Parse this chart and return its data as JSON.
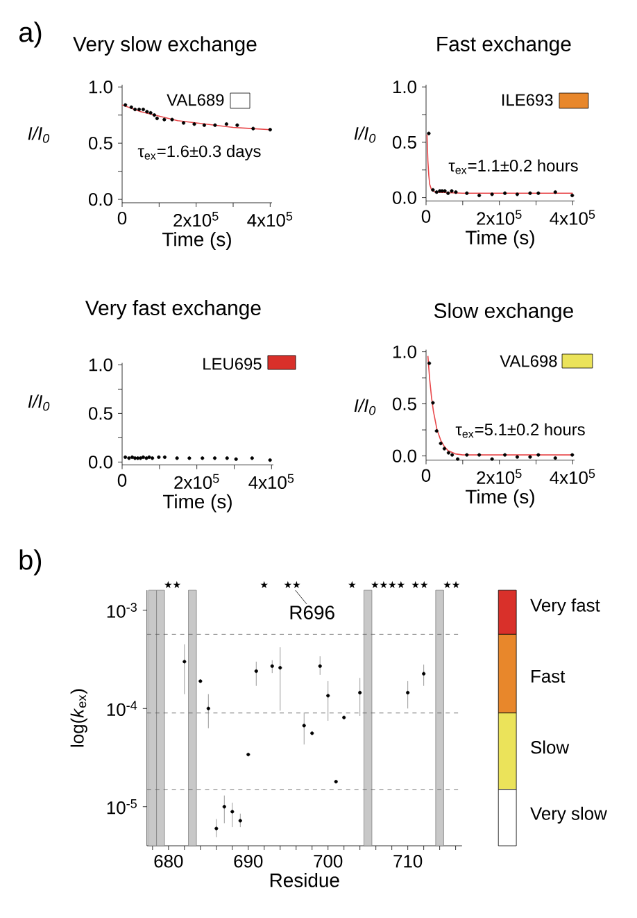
{
  "chart_data": [
    {
      "type": "scatter",
      "title": "Very slow exchange",
      "ylabel": "I/I$_{0}$",
      "xlabel": "Time (s)",
      "annotations": [
        "VAL689",
        "τ$_{ex}$=1.6±0.3 days",
        "a)"
      ],
      "xlim": [
        0,
        405000
      ],
      "xticks": [
        0,
        {
          "value": 100000,
          "label": null
        },
        {
          "value": 200000,
          "label": "2x10$^{5}$"
        },
        {
          "value": 300000,
          "label": null
        },
        {
          "value": 400000,
          "label": "4x10$^{5}$"
        }
      ],
      "ylim": [
        -0.03,
        1.02
      ],
      "yticks": [
        {
          "value": 0,
          "label": "0.0"
        },
        {
          "value": 0.25,
          "label": null
        },
        {
          "value": 0.5,
          "label": "0.5"
        },
        {
          "value": 0.75,
          "label": null
        },
        {
          "value": 1.0,
          "label": "1.0"
        }
      ],
      "series": [
        {
          "type": "scatter",
          "marker": "circle",
          "color": "#000000",
          "x": [
            8700,
            24800,
            34800,
            46000,
            57100,
            67100,
            77000,
            87000,
            94400,
            114000,
            135000,
            166000,
            195000,
            222000,
            251000,
            282000,
            311000,
            354000,
            400000
          ],
          "values": [
            0.84,
            0.82,
            0.8,
            0.8,
            0.8,
            0.78,
            0.77,
            0.75,
            0.72,
            0.71,
            0.71,
            0.68,
            0.67,
            0.66,
            0.66,
            0.67,
            0.66,
            0.63,
            0.62
          ]
        },
        {
          "type": "line",
          "marker": "none",
          "color": "#e8474a",
          "x": [
            0,
            50000,
            100000,
            150000,
            200000,
            250000,
            300000,
            350000,
            400000
          ],
          "values": [
            0.84,
            0.78,
            0.74,
            0.7,
            0.68,
            0.66,
            0.64,
            0.63,
            0.62
          ]
        }
      ]
    },
    {
      "type": "scatter",
      "title": "Fast exchange",
      "ylabel": "I/I$_{0}$",
      "xlabel": "Time (s)",
      "annotations": [
        "ILE693",
        "τ$_{ex}$=1.1±0.2 hours"
      ],
      "xlim": [
        0,
        405000
      ],
      "xticks": [
        0,
        {
          "value": 100000,
          "label": null
        },
        {
          "value": 200000,
          "label": "2x10$^{5}$"
        },
        {
          "value": 300000,
          "label": null
        },
        {
          "value": 400000,
          "label": "4x10$^{5}$"
        }
      ],
      "ylim": [
        -0.03,
        1.02
      ],
      "yticks": [
        {
          "value": 0,
          "label": "0.0"
        },
        {
          "value": 0.25,
          "label": null
        },
        {
          "value": 0.5,
          "label": "0.5"
        },
        {
          "value": 0.75,
          "label": null
        },
        {
          "value": 1.0,
          "label": "1.0"
        }
      ],
      "series": [
        {
          "type": "scatter",
          "marker": "circle",
          "color": "#000000",
          "x": [
            7500,
            18750,
            28750,
            37500,
            43750,
            51250,
            60000,
            70000,
            81250,
            111250,
            145000,
            180000,
            215000,
            248750,
            283750,
            306250,
            352500,
            398750
          ],
          "values": [
            0.58,
            0.07,
            0.05,
            0.06,
            0.06,
            0.06,
            0.04,
            0.06,
            0.05,
            0.04,
            0.02,
            0.03,
            0.04,
            0.03,
            0.04,
            0.04,
            0.05,
            0.02
          ]
        },
        {
          "type": "line",
          "marker": "none",
          "color": "#e8474a",
          "x": [
            2500,
            5000,
            7500,
            10000,
            15000,
            25000,
            100000,
            400000
          ],
          "values": [
            0.57,
            0.33,
            0.2,
            0.12,
            0.07,
            0.05,
            0.04,
            0.04
          ]
        }
      ]
    },
    {
      "type": "scatter",
      "title": "Very fast exchange",
      "ylabel": "I/I$_{0}$",
      "xlabel": "Time (s)",
      "annotations": [
        "LEU695"
      ],
      "xlim": [
        0,
        405000
      ],
      "xticks": [
        0,
        {
          "value": 100000,
          "label": null
        },
        {
          "value": 200000,
          "label": "2x10$^{5}$"
        },
        {
          "value": 300000,
          "label": null
        },
        {
          "value": 400000,
          "label": "4x10$^{5}$"
        }
      ],
      "ylim": [
        -0.03,
        1.02
      ],
      "yticks": [
        {
          "value": 0,
          "label": "0.0"
        },
        {
          "value": 0.25,
          "label": null
        },
        {
          "value": 0.5,
          "label": "0.5"
        },
        {
          "value": 0.75,
          "label": null
        },
        {
          "value": 1.0,
          "label": "1.0"
        }
      ],
      "series": [
        {
          "type": "scatter",
          "marker": "circle",
          "color": "#000000",
          "x": [
            8600,
            18400,
            27000,
            34400,
            41700,
            49100,
            56400,
            65000,
            72400,
            81000,
            98200,
            114000,
            147000,
            180000,
            215000,
            248000,
            281000,
            305000,
            348000,
            396000
          ],
          "values": [
            0.05,
            0.04,
            0.05,
            0.04,
            0.04,
            0.04,
            0.05,
            0.04,
            0.05,
            0.04,
            0.05,
            0.05,
            0.04,
            0.04,
            0.04,
            0.04,
            0.04,
            0.03,
            0.04,
            0.02
          ]
        }
      ]
    },
    {
      "type": "scatter",
      "title": "Slow exchange",
      "ylabel": "I/I$_{0}$",
      "xlabel": "Time (s)",
      "annotations": [
        "VAL698",
        "τ$_{ex}$=5.1±0.2 hours"
      ],
      "xlim": [
        0,
        405000
      ],
      "xticks": [
        0,
        {
          "value": 100000,
          "label": null
        },
        {
          "value": 200000,
          "label": "2x10$^{5}$"
        },
        {
          "value": 300000,
          "label": null
        },
        {
          "value": 400000,
          "label": "4x10$^{5}$"
        }
      ],
      "ylim": [
        -0.04,
        1.02
      ],
      "yticks": [
        {
          "value": 0,
          "label": "0.0"
        },
        {
          "value": 0.25,
          "label": null
        },
        {
          "value": 0.5,
          "label": "0.5"
        },
        {
          "value": 0.75,
          "label": null
        },
        {
          "value": 1.0,
          "label": "1.0"
        }
      ],
      "series": [
        {
          "type": "scatter",
          "marker": "circle",
          "color": "#000000",
          "x": [
            8750,
            18750,
            28750,
            40000,
            50000,
            61250,
            71250,
            86250,
            111250,
            145000,
            180000,
            215000,
            248750,
            283750,
            306250,
            352500,
            398750
          ],
          "values": [
            0.89,
            0.51,
            0.24,
            0.12,
            0.07,
            0.03,
            0.01,
            -0.03,
            0.01,
            0.01,
            -0.03,
            0.01,
            -0.01,
            -0.01,
            0.01,
            -0.02,
            0.01
          ]
        },
        {
          "type": "line",
          "marker": "none",
          "color": "#e8474a",
          "x": [
            5000,
            10000,
            15000,
            20000,
            30000,
            40000,
            50000,
            60000,
            80000,
            100000,
            400000
          ],
          "values": [
            0.96,
            0.73,
            0.56,
            0.43,
            0.25,
            0.15,
            0.09,
            0.05,
            0.02,
            0.01,
            0.01
          ]
        }
      ]
    },
    {
      "type": "scatter",
      "xlabel": "Residue",
      "ylabel": "log(*k*$_{ex}$)",
      "marker": "circle",
      "log": "y",
      "color": "#000000",
      "xlim": [
        677.3,
        716.8
      ],
      "xticks": [
        {
          "value": 678,
          "label": null
        },
        680,
        {
          "value": 682,
          "label": null
        },
        {
          "value": 684,
          "label": null
        },
        {
          "value": 686,
          "label": null
        },
        {
          "value": 688,
          "label": null
        },
        690,
        {
          "value": 692,
          "label": null
        },
        {
          "value": 694,
          "label": null
        },
        {
          "value": 696,
          "label": null
        },
        {
          "value": 698,
          "label": null
        },
        700,
        {
          "value": 702,
          "label": null
        },
        {
          "value": 704,
          "label": null
        },
        {
          "value": 706,
          "label": null
        },
        {
          "value": 708,
          "label": null
        },
        710,
        {
          "value": 712,
          "label": null
        },
        {
          "value": 714,
          "label": null
        },
        {
          "value": 716,
          "label": null
        }
      ],
      "ylim": [
        4e-06,
        0.0016
      ],
      "yticks": [
        {
          "value": 1e-05,
          "label": "10$^{-5}$"
        },
        {
          "value": 0.0001,
          "label": "10$^{-4}$"
        },
        {
          "value": 0.001,
          "label": "10$^{-3}$"
        }
      ],
      "x": [
        682,
        684,
        685,
        686,
        687,
        688,
        689,
        690,
        691,
        693,
        694,
        697,
        698,
        699,
        700,
        701,
        702,
        704,
        710,
        712
      ],
      "values": [
        0.0003,
        0.00019,
        0.0001,
        6e-06,
        1e-05,
        8.9e-06,
        7.2e-06,
        3.4e-05,
        0.00024,
        0.00027,
        0.00026,
        6.7e-05,
        5.6e-05,
        0.00027,
        0.000135,
        1.8e-05,
        8.1e-05,
        0.000145,
        0.000145,
        0.000226
      ],
      "errors": [
        [
          0.00014,
          0.00045
        ],
        null,
        [
          6.3e-05,
          0.00014
        ],
        [
          4.9e-06,
          7.5e-06
        ],
        [
          6.8e-06,
          1.3e-05
        ],
        [
          6.2e-06,
          1.1e-05
        ],
        [
          6.2e-06,
          8.5e-06
        ],
        null,
        [
          0.00017,
          0.0003
        ],
        [
          0.00023,
          0.00031
        ],
        [
          9.5e-05,
          0.00042
        ],
        [
          4.3e-05,
          9.1e-05
        ],
        null,
        [
          0.00022,
          0.00034
        ],
        [
          7.5e-05,
          0.00019
        ],
        null,
        null,
        [
          8.4e-05,
          0.000205
        ],
        [
          0.0001,
          0.00019
        ],
        [
          0.00017,
          0.00028
        ]
      ],
      "ref_lines": [
        {
          "axis": "y",
          "value": 0.00057,
          "line_style": "dashed",
          "color": "#555555"
        },
        {
          "axis": "y",
          "value": 9e-05,
          "line_style": "dashed",
          "color": "#555555"
        },
        {
          "axis": "y",
          "value": 1.5e-05,
          "line_style": "dashed",
          "color": "#555555"
        }
      ],
      "bands": [
        {
          "axis": "x",
          "from": 677.5,
          "to": 678.5,
          "color": "#c8c8c8"
        },
        {
          "axis": "x",
          "from": 678.5,
          "to": 679.5,
          "color": "#c8c8c8"
        },
        {
          "axis": "x",
          "from": 682.5,
          "to": 683.5,
          "color": "#c8c8c8"
        },
        {
          "axis": "x",
          "from": 704.5,
          "to": 705.5,
          "color": "#c8c8c8"
        },
        {
          "axis": "x",
          "from": 713.5,
          "to": 714.5,
          "color": "#c8c8c8"
        }
      ],
      "annotations": [
        "b)",
        "★★",
        "★",
        "★★",
        "★",
        "★★★★",
        "★★",
        "★★",
        "R696",
        "Very fast",
        "Fast",
        "Slow",
        "Very slow"
      ]
    }
  ]
}
